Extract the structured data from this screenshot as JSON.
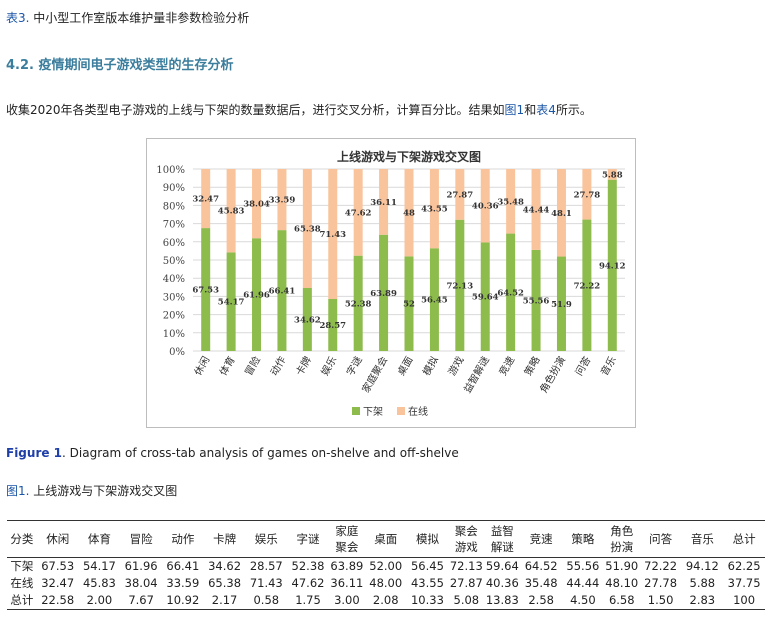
{
  "top_caption": {
    "ref": "表3.",
    "text": " 中小型工作室版本维护量非参数检验分析"
  },
  "section": {
    "number": "4.2.",
    "title": " 疫情期间电子游戏类型的生存分析"
  },
  "intro": {
    "pre": "收集2020年各类型电子游戏的上线与下架的数量数据后，进行交叉分析，计算百分比。结果如",
    "ref1": "图1",
    "mid": "和",
    "ref2": "表4",
    "post": "所示。"
  },
  "figure_caption": {
    "label": "Figure 1",
    "text": ". Diagram of cross-tab analysis of games on-shelve and off-shelve"
  },
  "figure_caption_cn": {
    "ref": "图1.",
    "text": " 上线游戏与下架游戏交叉图"
  },
  "colors": {
    "off_shelf": "#8dbb4c",
    "on_shelf": "#f9c49c",
    "accent": "#1a55a6"
  },
  "chart_data": {
    "type": "bar",
    "stacked": true,
    "title": "上线游戏与下架游戏交叉图",
    "categories": [
      "休闲",
      "体育",
      "冒险",
      "动作",
      "卡牌",
      "娱乐",
      "字谜",
      "家庭聚会",
      "桌面",
      "模拟",
      "游戏",
      "益智解谜",
      "竞速",
      "策略",
      "角色扮演",
      "问答",
      "音乐"
    ],
    "series": [
      {
        "name": "下架",
        "values": [
          67.53,
          54.17,
          61.96,
          66.41,
          34.62,
          28.57,
          52.38,
          63.89,
          52,
          56.45,
          72.13,
          59.64,
          64.52,
          55.56,
          51.9,
          72.22,
          94.12
        ]
      },
      {
        "name": "在线",
        "values": [
          32.47,
          45.83,
          38.04,
          33.59,
          65.38,
          71.43,
          47.62,
          36.11,
          48,
          43.55,
          27.87,
          40.36,
          35.48,
          44.44,
          48.1,
          27.78,
          5.88
        ]
      }
    ],
    "ylim": [
      0,
      100
    ],
    "yticks": [
      "0%",
      "10%",
      "20%",
      "30%",
      "40%",
      "50%",
      "60%",
      "70%",
      "80%",
      "90%",
      "100%"
    ],
    "grid": true,
    "legend": "bottom"
  },
  "table": {
    "headers": [
      "分类",
      "休闲",
      "体育",
      "冒险",
      "动作",
      "卡牌",
      "娱乐",
      "字谜",
      "家庭聚会",
      "桌面",
      "模拟",
      "聚会游戏",
      "益智解谜",
      "竞速",
      "策略",
      "角色扮演",
      "问答",
      "音乐",
      "总计"
    ],
    "rows": [
      [
        "下架",
        "67.53",
        "54.17",
        "61.96",
        "66.41",
        "34.62",
        "28.57",
        "52.38",
        "63.89",
        "52.00",
        "56.45",
        "72.13",
        "59.64",
        "64.52",
        "55.56",
        "51.90",
        "72.22",
        "94.12",
        "62.25"
      ],
      [
        "在线",
        "32.47",
        "45.83",
        "38.04",
        "33.59",
        "65.38",
        "71.43",
        "47.62",
        "36.11",
        "48.00",
        "43.55",
        "27.87",
        "40.36",
        "35.48",
        "44.44",
        "48.10",
        "27.78",
        "5.88",
        "37.75"
      ],
      [
        "总计",
        "22.58",
        "2.00",
        "7.67",
        "10.92",
        "2.17",
        "0.58",
        "1.75",
        "3.00",
        "2.08",
        "10.33",
        "5.08",
        "13.83",
        "2.58",
        "4.50",
        "6.58",
        "1.50",
        "2.83",
        "100"
      ]
    ]
  }
}
